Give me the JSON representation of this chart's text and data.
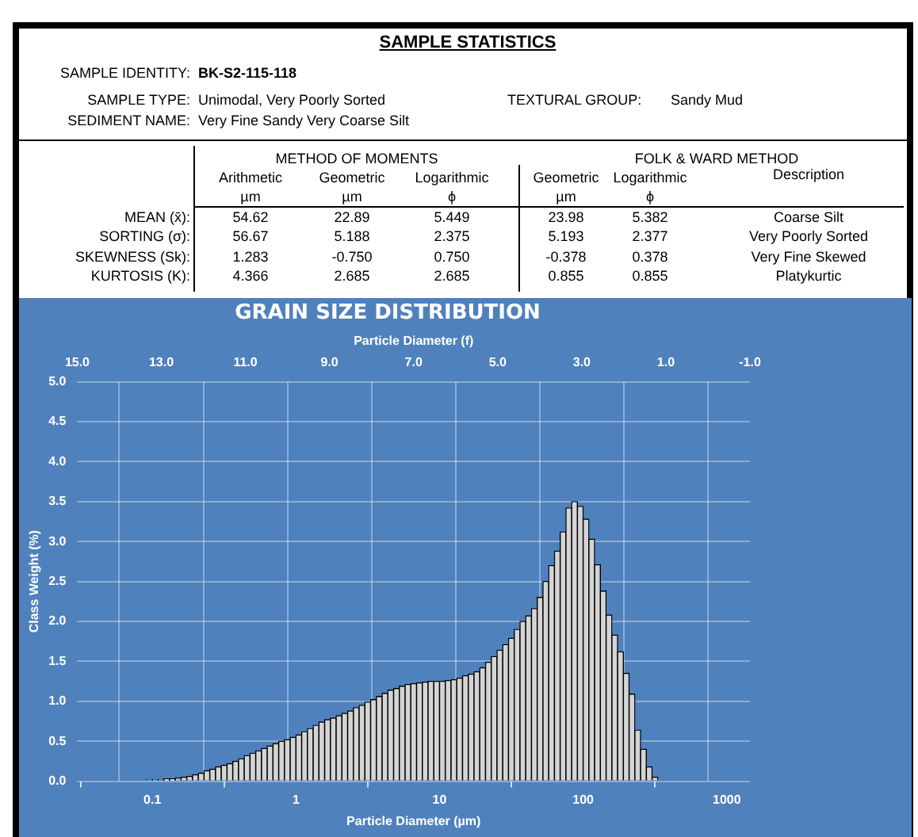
{
  "chart_data": {
    "type": "histogram",
    "title": "GRAIN SIZE DISTRIBUTION",
    "xlabel": "Particle Diameter (µm)",
    "x2label": "Particle Diameter (f)",
    "ylabel": "Class Weight (%)",
    "annotations": [
      "SAMPLE STATISTICS",
      "SAMPLE IDENTITY:",
      "BK-S2-115-118",
      "SAMPLE TYPE:",
      "Unimodal, Very Poorly Sorted",
      "TEXTURAL GROUP:",
      "Sandy Mud",
      "SEDIMENT NAME:",
      "Very Fine Sandy Very Coarse Silt",
      "METHOD OF MOMENTS",
      "FOLK & WARD METHOD",
      "Arithmetic",
      "Geometric",
      "Logarithmic",
      "Geometric",
      "Logarithmic",
      "Description",
      "µm",
      "µm",
      "ϕ",
      "µm",
      "ϕ",
      "MEAN (x̄):",
      "54.62",
      "22.89",
      "5.449",
      "23.98",
      "5.382",
      "Coarse Silt",
      "SORTING (σ):",
      "56.67",
      "5.188",
      "2.375",
      "5.193",
      "2.377",
      "Very Poorly Sorted",
      "SKEWNESS (Sk):",
      "1.283",
      "-0.750",
      "0.750",
      "-0.378",
      "0.378",
      "Very Fine Skewed",
      "KURTOSIS (K):",
      "4.366",
      "2.685",
      "2.685",
      "0.855",
      "0.855",
      "Platykurtic"
    ],
    "bins": [
      0.03981,
      0.04365,
      0.04786,
      0.05248,
      0.05754,
      0.0631,
      0.06918,
      0.07586,
      0.08318,
      0.0912,
      0.1,
      0.1096,
      0.1202,
      0.1318,
      0.1445,
      0.1585,
      0.1738,
      0.1905,
      0.2089,
      0.2291,
      0.2512,
      0.2754,
      0.302,
      0.3311,
      0.3631,
      0.3981,
      0.4365,
      0.4786,
      0.5248,
      0.5754,
      0.631,
      0.6918,
      0.7586,
      0.8318,
      0.912,
      1,
      1.096,
      1.202,
      1.318,
      1.445,
      1.585,
      1.738,
      1.905,
      2.089,
      2.291,
      2.512,
      2.754,
      3.02,
      3.311,
      3.631,
      3.981,
      4.365,
      4.786,
      5.248,
      5.754,
      6.31,
      6.918,
      7.586,
      8.318,
      9.12,
      10,
      10.96,
      12.02,
      13.18,
      14.45,
      15.85,
      17.38,
      19.05,
      20.89,
      22.91,
      25.12,
      27.54,
      30.2,
      33.11,
      36.31,
      39.81,
      43.65,
      47.86,
      52.48,
      57.54,
      63.1,
      69.18,
      75.86,
      83.18,
      91.2,
      100,
      109.6,
      120.2,
      131.8,
      144.5,
      158.5,
      173.8,
      190.5,
      208.9,
      229.1,
      251.2,
      275.4,
      302,
      331.1,
      363.1,
      398.1
    ],
    "values": [
      0,
      0,
      0,
      0,
      null,
      null,
      null,
      null,
      null,
      0.02,
      0.02,
      0.02,
      0.03,
      0.03,
      0.04,
      0.05,
      0.06,
      0.08,
      0.1,
      0.13,
      0.15,
      0.18,
      0.2,
      0.22,
      0.25,
      0.28,
      0.32,
      0.35,
      0.38,
      0.41,
      0.44,
      0.47,
      0.5,
      0.52,
      0.55,
      0.58,
      0.62,
      0.66,
      0.7,
      0.74,
      0.77,
      0.79,
      0.82,
      0.85,
      0.88,
      0.92,
      0.95,
      0.99,
      1.02,
      1.06,
      1.1,
      1.14,
      1.16,
      1.19,
      1.21,
      1.22,
      1.23,
      1.24,
      1.25,
      1.25,
      1.25,
      1.26,
      1.27,
      1.29,
      1.32,
      1.34,
      1.37,
      1.42,
      1.49,
      1.56,
      1.64,
      1.71,
      1.79,
      1.9,
      2,
      2.07,
      2.16,
      2.3,
      2.5,
      2.7,
      2.88,
      3.12,
      3.42,
      3.5,
      3.44,
      3.28,
      3.03,
      2.71,
      2.38,
      2.08,
      1.83,
      1.62,
      1.35,
      1.09,
      0.64,
      0.4,
      0.18,
      0.05,
      null,
      0
    ],
    "color": "#d4d4d4",
    "log": "x",
    "xlim": [
      0.03,
      1450
    ],
    "xticks": [
      0.1,
      1,
      10,
      100,
      1000
    ],
    "x2lim": [
      15,
      -1
    ],
    "x2ticks": [
      {
        "value": 15,
        "label": "15.0"
      },
      {
        "value": 13,
        "label": "13.0"
      },
      {
        "value": 11,
        "label": "11.0"
      },
      {
        "value": 9,
        "label": "9.0"
      },
      {
        "value": 7,
        "label": "7.0"
      },
      {
        "value": 5,
        "label": "5.0"
      },
      {
        "value": 3,
        "label": "3.0"
      },
      {
        "value": 1,
        "label": "1.0"
      },
      {
        "value": -1,
        "label": "-1.0"
      }
    ],
    "ylim": [
      0,
      5
    ],
    "yticks": [
      {
        "value": 0,
        "label": "0.0"
      },
      {
        "value": 0.5,
        "label": "0.5"
      },
      {
        "value": 1,
        "label": "1.0"
      },
      {
        "value": 1.5,
        "label": "1.5"
      },
      {
        "value": 2,
        "label": "2.0"
      },
      {
        "value": 2.5,
        "label": "2.5"
      },
      {
        "value": 3,
        "label": "3.0"
      },
      {
        "value": 3.5,
        "label": "3.5"
      },
      {
        "value": 4,
        "label": "4.0"
      },
      {
        "value": 4.5,
        "label": "4.5"
      },
      {
        "value": 5,
        "label": "5.0"
      }
    ],
    "grid": true
  }
}
